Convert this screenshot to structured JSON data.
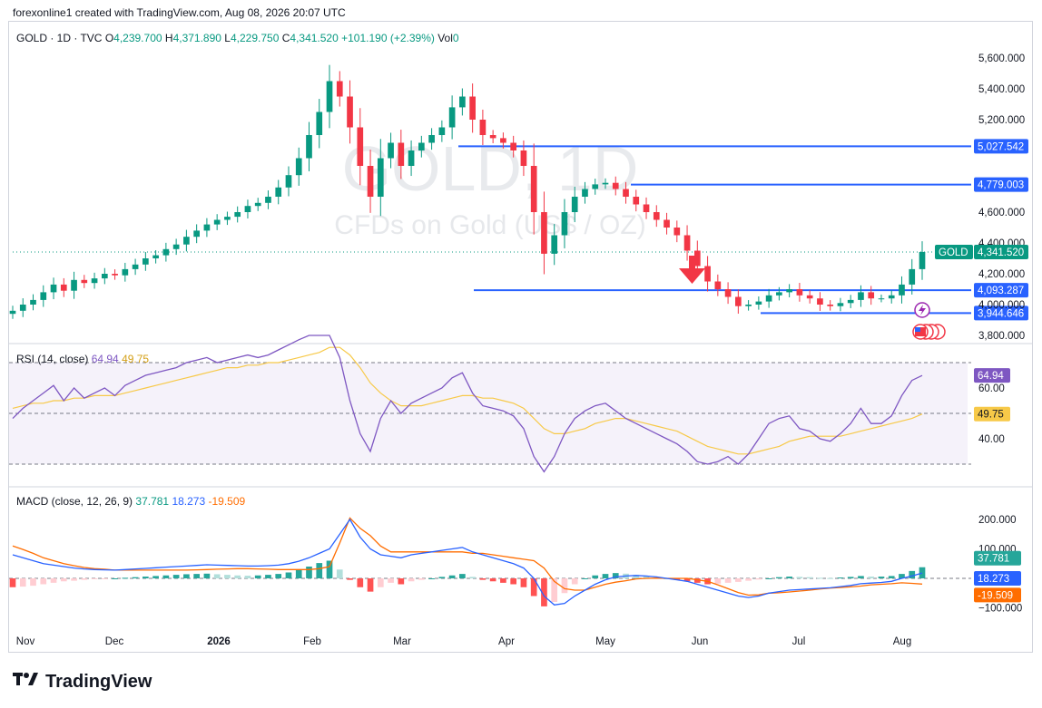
{
  "header": {
    "text": "forexonline1 created with TradingView.com, Aug 08, 2026 20:07 UTC"
  },
  "legend": {
    "symbol": "GOLD · 1D · TVC",
    "o_label": "O",
    "o": "4,239.700",
    "h_label": "H",
    "h": "4,371.890",
    "l_label": "L",
    "l": "4,229.750",
    "c_label": "C",
    "c": "4,341.520",
    "chg": "+101.190 (+2.39%)",
    "vol_label": "Vol",
    "vol": "0"
  },
  "watermark": {
    "line1": "GOLD, 1D",
    "line2": "CFDs on Gold (US$ / OZ)"
  },
  "footer": {
    "brand": "TradingView"
  },
  "colors": {
    "up": "#089981",
    "down": "#f23645",
    "level": "#2962ff",
    "rsi": "#7e57c2",
    "rsi_ma": "#f7c948",
    "macd": "#2962ff",
    "signal": "#ff6d00"
  },
  "icons": [
    "down-arrow-icon",
    "lightning-icon",
    "us-flag-icon"
  ],
  "chart_data": [
    {
      "type": "candlestick",
      "title": "GOLD · 1D · TVC",
      "y_ticks": [
        "5,600.000",
        "5,400.000",
        "5,200.000",
        "4,600.000",
        "4,400.000",
        "4,200.000",
        "4,000.000",
        "3,800.000"
      ],
      "ylim": [
        3800,
        5800
      ],
      "x_ticks": [
        "Nov",
        "Dec",
        "2026",
        "Feb",
        "Mar",
        "Apr",
        "May",
        "Jun",
        "Jul",
        "Aug"
      ],
      "price_label": {
        "name": "GOLD",
        "value": "4,341.520"
      },
      "levels": [
        {
          "value": 5027.542,
          "label": "5,027.542"
        },
        {
          "value": 4779.003,
          "label": "4,779.003"
        },
        {
          "value": 4093.287,
          "label": "4,093.287"
        },
        {
          "value": 3944.646,
          "label": "3,944.646"
        }
      ],
      "closes": [
        3960,
        4000,
        4030,
        4080,
        4130,
        4090,
        4160,
        4140,
        4170,
        4200,
        4190,
        4230,
        4260,
        4300,
        4320,
        4360,
        4390,
        4440,
        4480,
        4520,
        4550,
        4570,
        4600,
        4640,
        4660,
        4700,
        4760,
        4840,
        4950,
        5100,
        5250,
        5450,
        5350,
        5150,
        4900,
        4700,
        4950,
        5050,
        4900,
        5000,
        5050,
        5100,
        5150,
        5280,
        5350,
        5200,
        5100,
        5080,
        5050,
        5000,
        4900,
        4600,
        4330,
        4450,
        4600,
        4700,
        4750,
        4780,
        4790,
        4750,
        4700,
        4650,
        4600,
        4550,
        4500,
        4450,
        4350,
        4250,
        4150,
        4100,
        4050,
        3990,
        4000,
        4020,
        4060,
        4080,
        4100,
        4060,
        4040,
        4000,
        3990,
        4010,
        4030,
        4080,
        4040,
        4040,
        4060,
        4130,
        4230,
        4341.52
      ]
    },
    {
      "type": "line",
      "title": "RSI (14, close)",
      "y_ticks": [
        "60.00",
        "40.00"
      ],
      "ylim": [
        25,
        80
      ],
      "series": [
        {
          "name": "RSI",
          "last": "64.94",
          "values": [
            48,
            52,
            55,
            58,
            61,
            55,
            60,
            56,
            58,
            60,
            57,
            61,
            63,
            65,
            66,
            67,
            68,
            70,
            71,
            72,
            70,
            71,
            72,
            73,
            72,
            73,
            75,
            77,
            79,
            81,
            84,
            87,
            72,
            55,
            42,
            35,
            48,
            55,
            50,
            54,
            56,
            58,
            60,
            64,
            66,
            58,
            53,
            52,
            51,
            49,
            44,
            33,
            27,
            33,
            42,
            48,
            51,
            53,
            54,
            51,
            48,
            46,
            44,
            42,
            40,
            38,
            35,
            31,
            30,
            31,
            33,
            30,
            34,
            40,
            46,
            48,
            49,
            44,
            43,
            40,
            39,
            42,
            46,
            52,
            46,
            46,
            49,
            57,
            63,
            64.94
          ]
        },
        {
          "name": "RSI MA",
          "last": "49.75",
          "values": [
            52,
            53,
            54,
            54,
            55,
            55,
            56,
            56,
            57,
            57,
            57,
            58,
            59,
            60,
            61,
            62,
            63,
            64,
            65,
            66,
            67,
            68,
            68,
            69,
            69,
            70,
            70,
            71,
            72,
            73,
            74,
            76,
            76,
            73,
            68,
            62,
            58,
            55,
            53,
            53,
            53,
            54,
            55,
            56,
            57,
            57,
            56,
            56,
            55,
            54,
            52,
            48,
            44,
            42,
            42,
            43,
            44,
            46,
            47,
            48,
            48,
            47,
            46,
            45,
            44,
            43,
            41,
            39,
            37,
            36,
            35,
            34,
            34,
            35,
            36,
            37,
            39,
            40,
            41,
            41,
            41,
            41,
            42,
            43,
            44,
            45,
            46,
            47,
            48,
            49.75
          ]
        }
      ]
    },
    {
      "type": "bar+line",
      "title": "MACD (close, 12, 26, 9)",
      "y_ticks": [
        "200.000",
        "100.000",
        "−100.000"
      ],
      "ylim": [
        -160,
        240
      ],
      "series": [
        {
          "name": "Histogram",
          "last": "37.781",
          "values": [
            -30,
            -28,
            -25,
            -20,
            -15,
            -10,
            -8,
            -5,
            -3,
            -2,
            0,
            2,
            4,
            6,
            8,
            10,
            12,
            14,
            15,
            16,
            14,
            12,
            10,
            9,
            10,
            12,
            15,
            20,
            28,
            40,
            52,
            60,
            30,
            -5,
            -30,
            -45,
            -30,
            -15,
            -20,
            -10,
            -5,
            0,
            5,
            10,
            15,
            5,
            -5,
            -10,
            -15,
            -20,
            -30,
            -60,
            -95,
            -80,
            -50,
            -20,
            0,
            10,
            15,
            18,
            16,
            12,
            8,
            4,
            0,
            -5,
            -10,
            -15,
            -20,
            -18,
            -15,
            -12,
            -8,
            -4,
            0,
            4,
            6,
            5,
            4,
            2,
            1,
            3,
            5,
            8,
            6,
            6,
            8,
            15,
            25,
            37.781
          ]
        },
        {
          "name": "MACD",
          "last": "18.273",
          "values": [
            80,
            70,
            60,
            50,
            45,
            40,
            35,
            32,
            30,
            29,
            28,
            30,
            32,
            34,
            36,
            38,
            40,
            42,
            44,
            46,
            45,
            44,
            43,
            42,
            42,
            43,
            45,
            50,
            58,
            70,
            85,
            100,
            150,
            200,
            140,
            100,
            80,
            75,
            70,
            80,
            85,
            90,
            95,
            100,
            105,
            90,
            80,
            70,
            60,
            50,
            35,
            0,
            -60,
            -90,
            -85,
            -60,
            -40,
            -20,
            -5,
            5,
            8,
            10,
            8,
            5,
            0,
            -5,
            -10,
            -20,
            -30,
            -40,
            -50,
            -60,
            -65,
            -60,
            -50,
            -45,
            -40,
            -38,
            -36,
            -34,
            -32,
            -28,
            -24,
            -18,
            -16,
            -14,
            -10,
            0,
            8,
            18.273
          ]
        },
        {
          "name": "Signal",
          "last": "-19.509",
          "values": [
            110,
            98,
            85,
            70,
            60,
            50,
            43,
            37,
            33,
            31,
            28,
            28,
            28,
            28,
            28,
            28,
            28,
            28,
            29,
            30,
            31,
            32,
            33,
            33,
            32,
            31,
            30,
            30,
            30,
            30,
            33,
            40,
            120,
            205,
            170,
            145,
            110,
            90,
            90,
            90,
            90,
            90,
            90,
            90,
            90,
            85,
            85,
            80,
            75,
            70,
            65,
            60,
            35,
            -10,
            -35,
            -40,
            -40,
            -30,
            -20,
            -13,
            -8,
            -2,
            0,
            1,
            0,
            0,
            0,
            -5,
            -10,
            -22,
            -35,
            -48,
            -57,
            -56,
            -50,
            -49,
            -46,
            -43,
            -40,
            -36,
            -33,
            -31,
            -29,
            -26,
            -22,
            -20,
            -18,
            -15,
            -17,
            -19.509
          ]
        }
      ]
    }
  ]
}
